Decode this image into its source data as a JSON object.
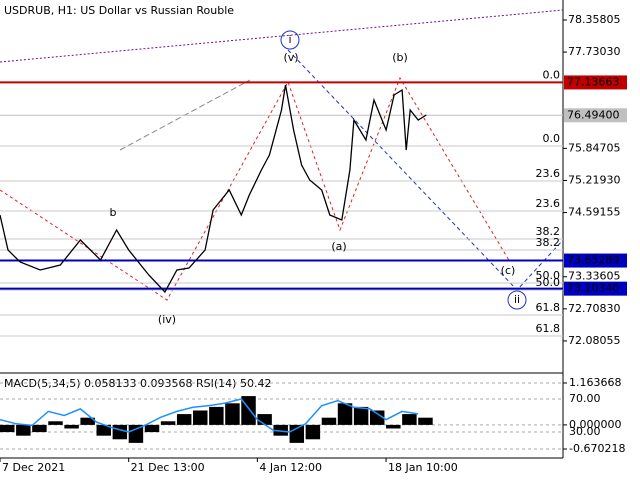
{
  "chart_data": [
    {
      "type": "line",
      "title": "USDRUB, H1:  US Dollar vs Russian Rouble",
      "xlim": [
        0,
        140
      ],
      "xticks": [
        {
          "value": 0,
          "label": "7 Dec 2021"
        },
        {
          "value": 32,
          "label": "21 Dec 13:00"
        },
        {
          "value": 64,
          "label": "4 Jan 12:00"
        },
        {
          "value": 96,
          "label": "18 Jan 10:00"
        }
      ],
      "ylim": [
        71.473,
        78.749
      ],
      "yticks": [
        78.35805,
        {
          "value": 77.7303,
          "label": "77.73030"
        },
        {
          "value": 75.84705,
          "label": "75.84705"
        },
        {
          "value": 75.2193,
          "label": "75.21930"
        },
        {
          "value": 74.59155,
          "label": "74.59155"
        },
        {
          "value": 73.33605,
          "label": "73.33605"
        },
        {
          "value": 72.7083,
          "label": "72.70830"
        },
        {
          "value": 72.08055,
          "label": "72.08055"
        }
      ],
      "levels": [
        {
          "value": 77.13663,
          "label": "77.13663",
          "color": "#c00000"
        },
        {
          "value": 76.494,
          "label": "76.49400",
          "color": "#c0c0c0"
        },
        {
          "value": 73.65289,
          "label": "73.65289",
          "color": "#0000c0"
        },
        {
          "value": 73.1034,
          "label": "73.10340",
          "color": "#0000c0"
        }
      ],
      "fib_levels": [
        {
          "label": "0.0",
          "value": 77.13663
        },
        {
          "label": "0.0",
          "value": 75.894
        },
        {
          "label": "23.6",
          "value": 75.209
        },
        {
          "label": "23.6",
          "value": 74.622
        },
        {
          "label": "38.2",
          "value": 74.075
        },
        {
          "label": "38.2",
          "value": 73.86
        },
        {
          "label": "50.0",
          "value": 73.214
        },
        {
          "label": "50.0",
          "value": 73.077
        },
        {
          "label": "61.8",
          "value": 72.588
        },
        {
          "label": "61.8",
          "value": 72.177
        }
      ],
      "waves": [
        "i",
        "(v)",
        "(b)",
        "(a)",
        "(c)",
        "ii",
        "(iv)",
        "b"
      ],
      "series": [
        {
          "name": "USDRUB",
          "color": "#000000",
          "x": [
            0,
            2,
            5,
            10,
            15,
            20,
            25,
            29,
            32,
            37,
            41,
            44,
            47,
            51,
            53,
            57,
            60,
            62,
            65,
            67,
            70,
            71,
            73,
            75,
            77,
            80,
            82,
            85,
            87,
            88,
            91,
            93,
            96,
            98,
            100,
            101,
            102,
            104,
            106
          ],
          "values": [
            74.544,
            73.859,
            73.625,
            73.468,
            73.566,
            74.055,
            73.664,
            74.251,
            73.859,
            73.371,
            73.038,
            73.468,
            73.507,
            73.859,
            74.642,
            75.033,
            74.544,
            74.935,
            75.424,
            75.718,
            76.598,
            77.087,
            76.206,
            75.522,
            75.228,
            75.033,
            74.544,
            74.446,
            75.424,
            76.402,
            76.011,
            76.793,
            76.206,
            76.891,
            76.989,
            75.815,
            76.598,
            76.402,
            76.5
          ]
        }
      ]
    },
    {
      "type": "indicator",
      "title": "MACD(5,34,5) 0.058133 0.093568 RSI(14) 50.42",
      "xlim": [
        0,
        140
      ],
      "ylim": [
        -0.92,
        1.386
      ],
      "yticks": [
        1.163668,
        {
          "value": 0,
          "label": "0.000000"
        },
        -0.670218
      ],
      "y2lim": [
        -1.5,
        99.1
      ],
      "y2ticks": [
        {
          "value": 70,
          "label": "70.00"
        },
        {
          "value": 30,
          "label": "30.00"
        }
      ],
      "x": [
        0,
        4,
        8,
        12,
        16,
        20,
        24,
        28,
        32,
        36,
        40,
        44,
        48,
        52,
        56,
        60,
        64,
        68,
        72,
        76,
        80,
        84,
        88,
        92,
        96,
        100,
        104
      ],
      "series": [
        {
          "name": "MACD",
          "color": "#000000",
          "values": [
            -0.2,
            -0.3,
            -0.2,
            0.1,
            -0.1,
            0.2,
            -0.3,
            -0.4,
            -0.5,
            -0.2,
            0.1,
            0.3,
            0.4,
            0.5,
            0.6,
            0.8,
            0.3,
            -0.3,
            -0.5,
            -0.4,
            0.2,
            0.6,
            0.5,
            0.4,
            -0.1,
            0.3,
            0.2
          ]
        },
        {
          "name": "RSI",
          "color": "#1e90ff",
          "axis": "y2",
          "values": [
            45,
            40,
            38,
            55,
            50,
            58,
            42,
            35,
            30,
            38,
            48,
            55,
            60,
            62,
            65,
            70,
            45,
            32,
            30,
            40,
            62,
            68,
            60,
            58,
            45,
            55,
            52
          ]
        }
      ]
    }
  ]
}
